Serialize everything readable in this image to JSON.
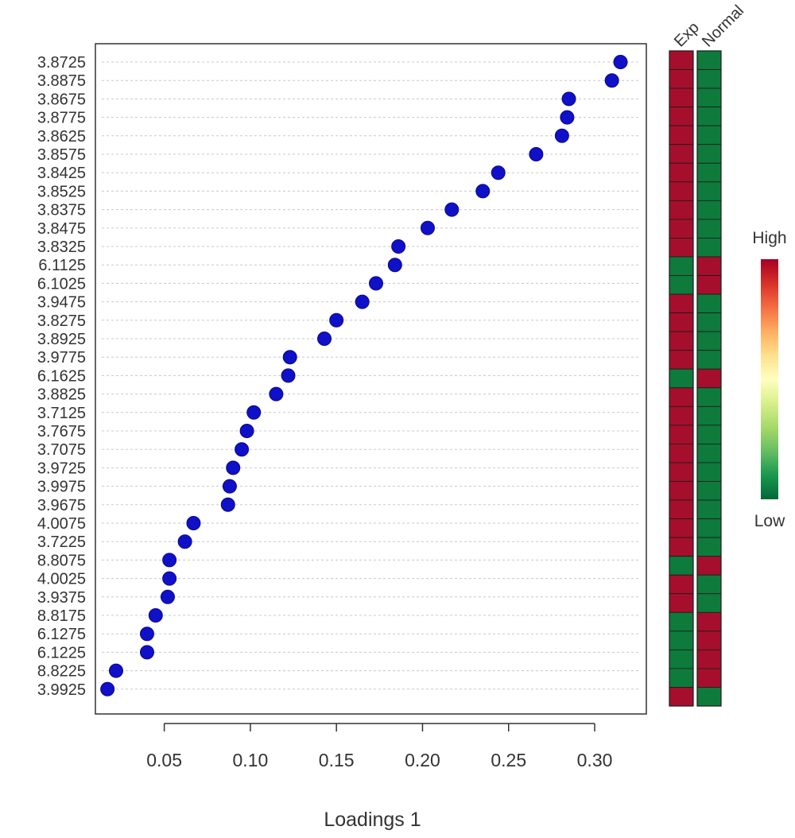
{
  "chart_data": {
    "type": "scatter",
    "xlabel": "Loadings 1",
    "ylabel": "",
    "xlim": [
      0.01,
      0.33
    ],
    "x_ticks": [
      0.05,
      0.1,
      0.15,
      0.2,
      0.25,
      0.3
    ],
    "x_tick_labels": [
      "0.05",
      "0.10",
      "0.15",
      "0.20",
      "0.25",
      "0.30"
    ],
    "grid": "horizontal-dotted",
    "point_color": "#1010c8",
    "features": [
      "3.8725",
      "3.8875",
      "3.8675",
      "3.8775",
      "3.8625",
      "3.8575",
      "3.8425",
      "3.8525",
      "3.8375",
      "3.8475",
      "3.8325",
      "6.1125",
      "6.1025",
      "3.9475",
      "3.8275",
      "3.8925",
      "3.9775",
      "6.1625",
      "3.8825",
      "3.7125",
      "3.7675",
      "3.7075",
      "3.9725",
      "3.9975",
      "3.9675",
      "4.0075",
      "3.7225",
      "8.8075",
      "4.0025",
      "3.9375",
      "8.8175",
      "6.1275",
      "6.1225",
      "8.8225",
      "3.9925"
    ],
    "values": [
      0.315,
      0.31,
      0.285,
      0.284,
      0.281,
      0.266,
      0.244,
      0.235,
      0.217,
      0.203,
      0.186,
      0.184,
      0.173,
      0.165,
      0.15,
      0.143,
      0.123,
      0.122,
      0.115,
      0.102,
      0.098,
      0.095,
      0.09,
      0.088,
      0.087,
      0.067,
      0.062,
      0.053,
      0.053,
      0.052,
      0.045,
      0.04,
      0.04,
      0.022,
      0.017
    ],
    "heatmap": {
      "columns": [
        "Exp",
        "Normal"
      ],
      "levels": [
        [
          "high",
          "low"
        ],
        [
          "high",
          "low"
        ],
        [
          "high",
          "low"
        ],
        [
          "high",
          "low"
        ],
        [
          "high",
          "low"
        ],
        [
          "high",
          "low"
        ],
        [
          "high",
          "low"
        ],
        [
          "high",
          "low"
        ],
        [
          "high",
          "low"
        ],
        [
          "high",
          "low"
        ],
        [
          "high",
          "low"
        ],
        [
          "low",
          "high"
        ],
        [
          "low",
          "high"
        ],
        [
          "high",
          "low"
        ],
        [
          "high",
          "low"
        ],
        [
          "high",
          "low"
        ],
        [
          "high",
          "low"
        ],
        [
          "low",
          "high"
        ],
        [
          "high",
          "low"
        ],
        [
          "high",
          "low"
        ],
        [
          "high",
          "low"
        ],
        [
          "high",
          "low"
        ],
        [
          "high",
          "low"
        ],
        [
          "high",
          "low"
        ],
        [
          "high",
          "low"
        ],
        [
          "high",
          "low"
        ],
        [
          "high",
          "low"
        ],
        [
          "low",
          "high"
        ],
        [
          "high",
          "low"
        ],
        [
          "high",
          "low"
        ],
        [
          "low",
          "high"
        ],
        [
          "low",
          "high"
        ],
        [
          "low",
          "high"
        ],
        [
          "low",
          "high"
        ],
        [
          "high",
          "low"
        ]
      ],
      "colors": {
        "high": "#a50f2d",
        "low": "#0e7a3c"
      }
    },
    "legend": {
      "high_label": "High",
      "low_label": "Low",
      "placement": "right",
      "gradient": [
        "#a50026",
        "#d73027",
        "#f46d43",
        "#fdae61",
        "#fee08b",
        "#ffffbf",
        "#d9ef8b",
        "#a6d96a",
        "#66bd63",
        "#1a9850",
        "#006837"
      ]
    }
  }
}
